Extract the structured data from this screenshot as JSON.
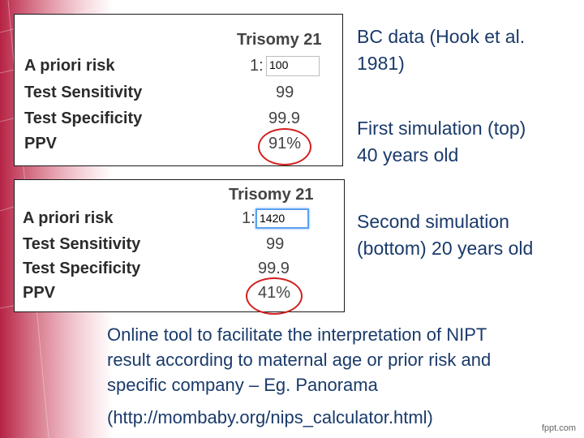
{
  "colors": {
    "accent_text": "#1a3a6b",
    "highlight_ring": "#d21f1f",
    "edge_deco": "#b2173a"
  },
  "panel_top": {
    "title": "Trisomy 21",
    "rows": [
      {
        "label": "A priori risk",
        "prefix": "1:",
        "input_value": "100"
      },
      {
        "label": "Test Sensitivity",
        "value": "99"
      },
      {
        "label": "Test Specificity",
        "value": "99.9"
      },
      {
        "label": "PPV",
        "value": "91%"
      }
    ]
  },
  "panel_bottom": {
    "title": "Trisomy 21",
    "rows": [
      {
        "label": "A priori risk",
        "prefix": "1:",
        "input_value": "1420"
      },
      {
        "label": "Test Sensitivity",
        "value": "99"
      },
      {
        "label": "Test Specificity",
        "value": "99.9"
      },
      {
        "label": "PPV",
        "value": "41%"
      }
    ]
  },
  "notes": {
    "note1_line1": "BC data (Hook et al.",
    "note1_line2": "1981)",
    "note2_line1": "First simulation (top)",
    "note2_line2": "40 years old",
    "note3_line1": "Second simulation",
    "note3_line2": "(bottom) 20 years old"
  },
  "bottom_text": {
    "line1": "Online tool to facilitate the interpretation of NIPT",
    "line2": "result according to maternal age or prior risk and",
    "line3": "specific company – Eg. Panorama",
    "url": "(http://mombaby.org/nips_calculator.html)"
  },
  "footer": "fppt.com"
}
